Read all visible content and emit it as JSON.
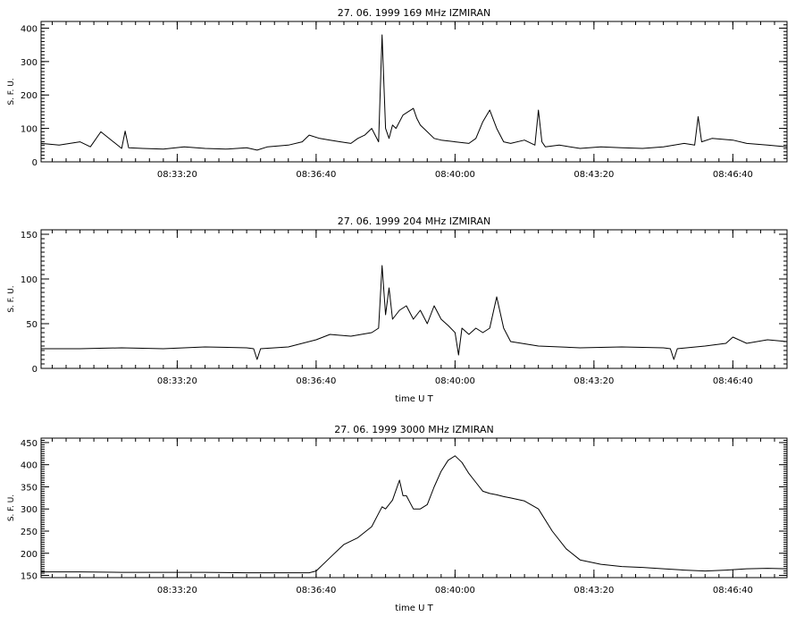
{
  "chart_data": [
    {
      "type": "line",
      "title": "27. 06. 1999    169 MHz    IZMIRAN",
      "ylabel": "S. F. U.",
      "xlabel": "",
      "xlim": [
        "08:30:04",
        "08:47:58"
      ],
      "ylim": [
        0,
        420
      ],
      "yticks": [
        0,
        100,
        200,
        300,
        400
      ],
      "xticks": [
        "08:33:20",
        "08:36:40",
        "08:40:00",
        "08:43:20",
        "08:46:40"
      ],
      "grid": false,
      "series": [
        {
          "x": [
            "08:30:04",
            "08:30:30",
            "08:31:00",
            "08:31:15",
            "08:31:30",
            "08:32:00",
            "08:32:05",
            "08:32:10",
            "08:32:30",
            "08:33:00",
            "08:33:30",
            "08:34:00",
            "08:34:30",
            "08:35:00",
            "08:35:15",
            "08:35:30",
            "08:36:00",
            "08:36:20",
            "08:36:30",
            "08:36:45",
            "08:37:00",
            "08:37:15",
            "08:37:30",
            "08:37:40",
            "08:37:50",
            "08:38:00",
            "08:38:10",
            "08:38:15",
            "08:38:20",
            "08:38:25",
            "08:38:30",
            "08:38:35",
            "08:38:45",
            "08:39:00",
            "08:39:05",
            "08:39:10",
            "08:39:20",
            "08:39:30",
            "08:39:40",
            "08:40:00",
            "08:40:20",
            "08:40:30",
            "08:40:40",
            "08:40:50",
            "08:41:00",
            "08:41:05",
            "08:41:10",
            "08:41:20",
            "08:41:40",
            "08:41:55",
            "08:42:00",
            "08:42:05",
            "08:42:10",
            "08:42:30",
            "08:43:00",
            "08:43:30",
            "08:44:00",
            "08:44:30",
            "08:45:00",
            "08:45:30",
            "08:45:45",
            "08:45:50",
            "08:45:55",
            "08:46:10",
            "08:46:40",
            "08:47:00",
            "08:47:30",
            "08:47:58"
          ],
          "values": [
            55,
            50,
            60,
            45,
            90,
            40,
            92,
            42,
            40,
            38,
            45,
            40,
            38,
            42,
            35,
            45,
            50,
            60,
            80,
            70,
            65,
            60,
            55,
            70,
            80,
            100,
            60,
            380,
            100,
            70,
            110,
            100,
            140,
            160,
            130,
            110,
            90,
            70,
            65,
            60,
            55,
            70,
            120,
            155,
            100,
            80,
            60,
            55,
            65,
            50,
            155,
            60,
            45,
            50,
            40,
            45,
            42,
            40,
            45,
            55,
            50,
            135,
            60,
            70,
            65,
            55,
            50,
            45
          ]
        }
      ]
    },
    {
      "type": "line",
      "title": "27. 06. 1999    204 MHz    IZMIRAN",
      "ylabel": "S. F. U.",
      "xlabel": "time  U T",
      "xlim": [
        "08:30:04",
        "08:47:58"
      ],
      "ylim": [
        0,
        155
      ],
      "yticks": [
        0,
        50,
        100,
        150
      ],
      "xticks": [
        "08:33:20",
        "08:36:40",
        "08:40:00",
        "08:43:20",
        "08:46:40"
      ],
      "grid": false,
      "series": [
        {
          "x": [
            "08:30:04",
            "08:31:00",
            "08:32:00",
            "08:33:00",
            "08:34:00",
            "08:35:00",
            "08:35:10",
            "08:35:15",
            "08:35:20",
            "08:36:00",
            "08:36:40",
            "08:37:00",
            "08:37:30",
            "08:38:00",
            "08:38:10",
            "08:38:15",
            "08:38:20",
            "08:38:25",
            "08:38:30",
            "08:38:40",
            "08:38:50",
            "08:39:00",
            "08:39:10",
            "08:39:20",
            "08:39:30",
            "08:39:40",
            "08:39:50",
            "08:40:00",
            "08:40:05",
            "08:40:10",
            "08:40:20",
            "08:40:30",
            "08:40:40",
            "08:40:50",
            "08:41:00",
            "08:41:10",
            "08:41:20",
            "08:42:00",
            "08:43:00",
            "08:44:00",
            "08:45:00",
            "08:45:10",
            "08:45:15",
            "08:45:20",
            "08:46:00",
            "08:46:30",
            "08:46:40",
            "08:47:00",
            "08:47:30",
            "08:47:58"
          ],
          "values": [
            22,
            22,
            23,
            22,
            24,
            23,
            22,
            10,
            22,
            24,
            32,
            38,
            36,
            40,
            45,
            115,
            60,
            90,
            55,
            65,
            70,
            55,
            65,
            50,
            70,
            55,
            48,
            40,
            15,
            45,
            38,
            45,
            40,
            45,
            80,
            45,
            30,
            25,
            23,
            24,
            23,
            22,
            10,
            22,
            25,
            28,
            35,
            28,
            32,
            30
          ]
        }
      ]
    },
    {
      "type": "line",
      "title": "27. 06. 1999    3000 MHz    IZMIRAN",
      "ylabel": "S. F. U.",
      "xlabel": "time  U T",
      "xlim": [
        "08:30:04",
        "08:47:58"
      ],
      "ylim": [
        145,
        460
      ],
      "yticks": [
        150,
        200,
        250,
        300,
        350,
        400,
        450
      ],
      "xticks": [
        "08:33:20",
        "08:36:40",
        "08:40:00",
        "08:43:20",
        "08:46:40"
      ],
      "grid": false,
      "series": [
        {
          "x": [
            "08:30:04",
            "08:31:00",
            "08:32:00",
            "08:33:00",
            "08:34:00",
            "08:35:00",
            "08:36:00",
            "08:36:30",
            "08:36:40",
            "08:37:00",
            "08:37:20",
            "08:37:40",
            "08:38:00",
            "08:38:10",
            "08:38:15",
            "08:38:20",
            "08:38:30",
            "08:38:40",
            "08:38:45",
            "08:38:50",
            "08:39:00",
            "08:39:10",
            "08:39:20",
            "08:39:30",
            "08:39:40",
            "08:39:50",
            "08:40:00",
            "08:40:10",
            "08:40:20",
            "08:40:30",
            "08:40:40",
            "08:40:50",
            "08:41:00",
            "08:41:10",
            "08:41:20",
            "08:41:40",
            "08:42:00",
            "08:42:20",
            "08:42:40",
            "08:43:00",
            "08:43:30",
            "08:44:00",
            "08:44:30",
            "08:45:00",
            "08:45:30",
            "08:46:00",
            "08:46:30",
            "08:47:00",
            "08:47:30",
            "08:47:58"
          ],
          "values": [
            158,
            158,
            157,
            157,
            157,
            156,
            156,
            156,
            160,
            190,
            220,
            235,
            260,
            290,
            305,
            300,
            320,
            365,
            330,
            330,
            300,
            300,
            310,
            350,
            385,
            410,
            420,
            405,
            380,
            360,
            340,
            335,
            332,
            328,
            325,
            318,
            300,
            250,
            210,
            185,
            175,
            170,
            168,
            165,
            162,
            160,
            162,
            165,
            166,
            165
          ]
        }
      ]
    }
  ]
}
